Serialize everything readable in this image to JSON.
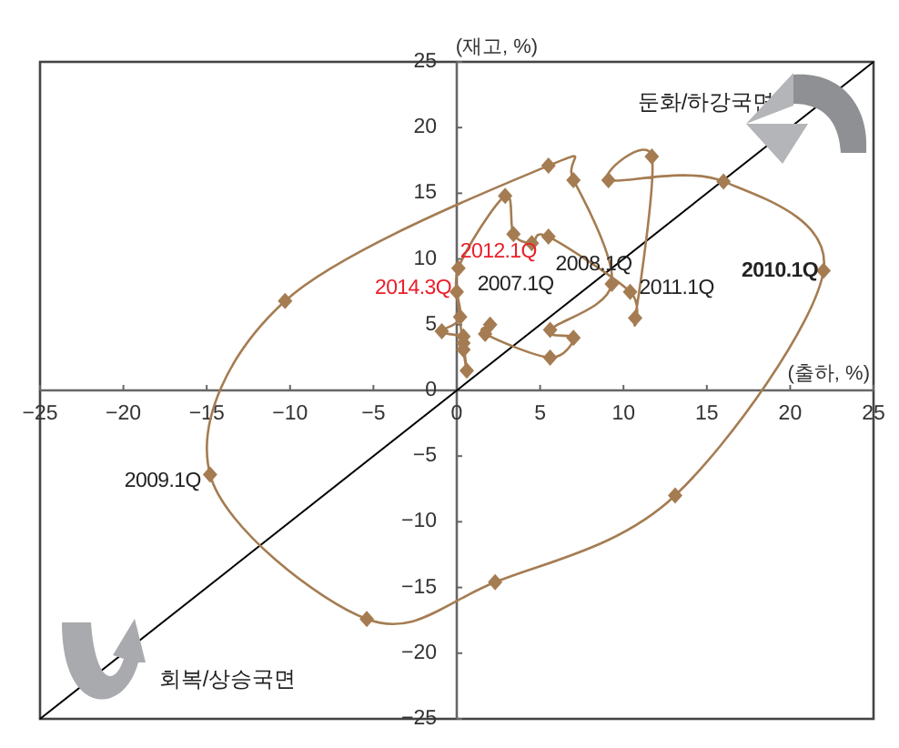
{
  "chart_data": {
    "type": "line",
    "xlabel": "(출하, %)",
    "ylabel": "(재고, %)",
    "xlim": [
      -25,
      25
    ],
    "ylim": [
      -25,
      25
    ],
    "xticks": [
      -25,
      -20,
      -15,
      -10,
      -5,
      0,
      5,
      10,
      15,
      20,
      25
    ],
    "yticks": [
      -25,
      -20,
      -15,
      -10,
      -5,
      0,
      5,
      10,
      15,
      20,
      25
    ],
    "marker": "diamond",
    "grid": false,
    "series": [
      {
        "color": "#a57c52",
        "x": [
          2.0,
          1.7,
          5.6,
          7.0,
          5.6,
          9.3,
          7.0,
          5.5,
          -10.3,
          -14.8,
          -5.4,
          2.3,
          13.1,
          22.0,
          16.0,
          9.1,
          11.7,
          10.7,
          10.4,
          5.5,
          4.5,
          3.4,
          2.9,
          0.1,
          0.2,
          -0.9,
          0.4,
          0.4,
          0.6,
          0.4,
          0.0
        ],
        "values": [
          5.0,
          4.3,
          2.5,
          4.0,
          4.6,
          8.1,
          16.0,
          17.1,
          6.8,
          -6.4,
          -17.4,
          -14.6,
          -8.0,
          9.1,
          15.9,
          16.0,
          17.8,
          5.5,
          7.5,
          11.7,
          11.2,
          11.9,
          14.8,
          9.3,
          5.6,
          4.5,
          4.1,
          3.6,
          1.5,
          3.1,
          7.5
        ]
      },
      {
        "type": "line",
        "marker": "none",
        "color": "#000000",
        "x": [
          -25,
          25
        ],
        "values": [
          -25,
          25
        ]
      }
    ],
    "annotations": [
      {
        "text": "2007.1Q",
        "x": 2.0,
        "y": 5.0
      },
      {
        "text": "2008.1Q",
        "x": 5.6,
        "y": 4.6
      },
      {
        "text": "2009.1Q",
        "x": -14.8,
        "y": -6.4
      },
      {
        "text": "2010.1Q",
        "x": 22.0,
        "y": 9.1
      },
      {
        "text": "2011.1Q",
        "x": 10.4,
        "y": 7.5
      },
      {
        "text": "2012.1Q",
        "x": 0.1,
        "y": 9.3
      },
      {
        "text": "2014.3Q",
        "x": 0.0,
        "y": 7.5
      },
      "둔화/하강국면",
      "회복/상승국면"
    ]
  }
}
